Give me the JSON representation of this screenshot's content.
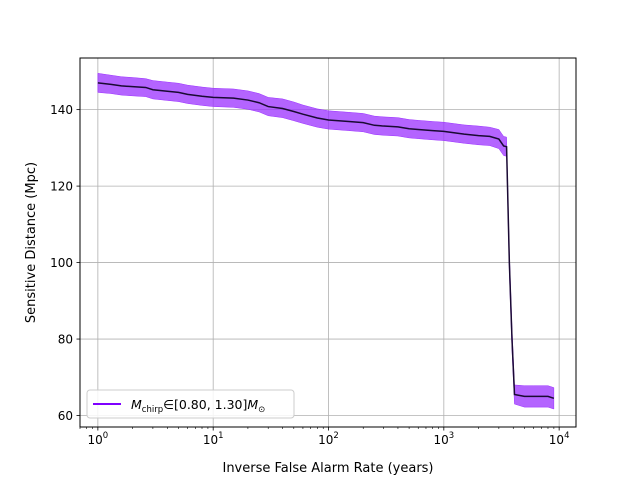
{
  "chart_data": {
    "type": "line",
    "title": "",
    "xlabel": "Inverse False Alarm Rate (years)",
    "ylabel": "Sensitive Distance (Mpc)",
    "xscale": "log",
    "xlim": [
      0.7,
      14000
    ],
    "ylim": [
      57,
      153.5
    ],
    "grid": true,
    "legend_position": "lower-left",
    "x_ticks": [
      {
        "value": 1,
        "base": "10",
        "exp": "0"
      },
      {
        "value": 10,
        "base": "10",
        "exp": "1"
      },
      {
        "value": 100,
        "base": "10",
        "exp": "2"
      },
      {
        "value": 1000,
        "base": "10",
        "exp": "3"
      },
      {
        "value": 10000,
        "base": "10",
        "exp": "4"
      }
    ],
    "y_ticks": [
      {
        "value": 60,
        "label": "60"
      },
      {
        "value": 80,
        "label": "80"
      },
      {
        "value": 100,
        "label": "100"
      },
      {
        "value": 120,
        "label": "120"
      },
      {
        "value": 140,
        "label": "140"
      }
    ],
    "series": [
      {
        "label_math": {
          "sym": "M",
          "sub": "chirp",
          "rel": "∈",
          "range": "[0.80, 1.30]",
          "sym2": "M",
          "sub2": "⊙"
        },
        "line_color": "#1a0a33",
        "band_color": "#9b30ff",
        "legend_color": "#7f00ff",
        "x": [
          1.0,
          1.3,
          1.6,
          2.0,
          2.6,
          3.0,
          4.0,
          5.0,
          6.0,
          8.0,
          10,
          15,
          20,
          25,
          30,
          40,
          50,
          60,
          80,
          100,
          150,
          200,
          250,
          300,
          400,
          500,
          600,
          800,
          1000,
          1500,
          2000,
          2500,
          3000,
          3300,
          3500,
          3700,
          3900,
          4100,
          5000,
          6000,
          8000,
          9000
        ],
        "y": [
          147.0,
          146.6,
          146.2,
          146.0,
          145.8,
          145.2,
          144.8,
          144.5,
          144.0,
          143.5,
          143.2,
          143.0,
          142.5,
          141.8,
          140.8,
          140.3,
          139.5,
          138.8,
          137.8,
          137.3,
          136.9,
          136.6,
          135.9,
          135.7,
          135.5,
          135.0,
          134.8,
          134.5,
          134.3,
          133.6,
          133.2,
          133.0,
          132.3,
          130.5,
          130.3,
          100.0,
          80.0,
          65.5,
          65.0,
          65.0,
          65.0,
          64.5
        ],
        "y_upper": [
          149.5,
          149.0,
          148.6,
          148.4,
          148.1,
          147.6,
          147.2,
          146.9,
          146.4,
          145.9,
          145.6,
          145.4,
          144.9,
          144.2,
          143.2,
          142.8,
          142.0,
          141.2,
          140.2,
          139.7,
          139.3,
          139.0,
          138.3,
          138.1,
          137.9,
          137.4,
          137.2,
          136.9,
          136.7,
          136.0,
          135.7,
          135.4,
          134.8,
          133.0,
          132.8,
          103.0,
          83.0,
          68.0,
          67.8,
          67.8,
          67.8,
          67.3
        ],
        "y_lower": [
          144.5,
          144.2,
          143.8,
          143.6,
          143.4,
          142.8,
          142.4,
          142.1,
          141.6,
          141.1,
          140.8,
          140.6,
          140.1,
          139.4,
          138.4,
          137.9,
          137.1,
          136.4,
          135.4,
          134.9,
          134.5,
          134.2,
          133.5,
          133.3,
          133.1,
          132.6,
          132.4,
          132.1,
          131.9,
          131.2,
          130.8,
          130.6,
          129.8,
          128.0,
          127.8,
          97.0,
          77.0,
          63.0,
          62.2,
          62.2,
          62.2,
          61.7
        ]
      }
    ]
  }
}
